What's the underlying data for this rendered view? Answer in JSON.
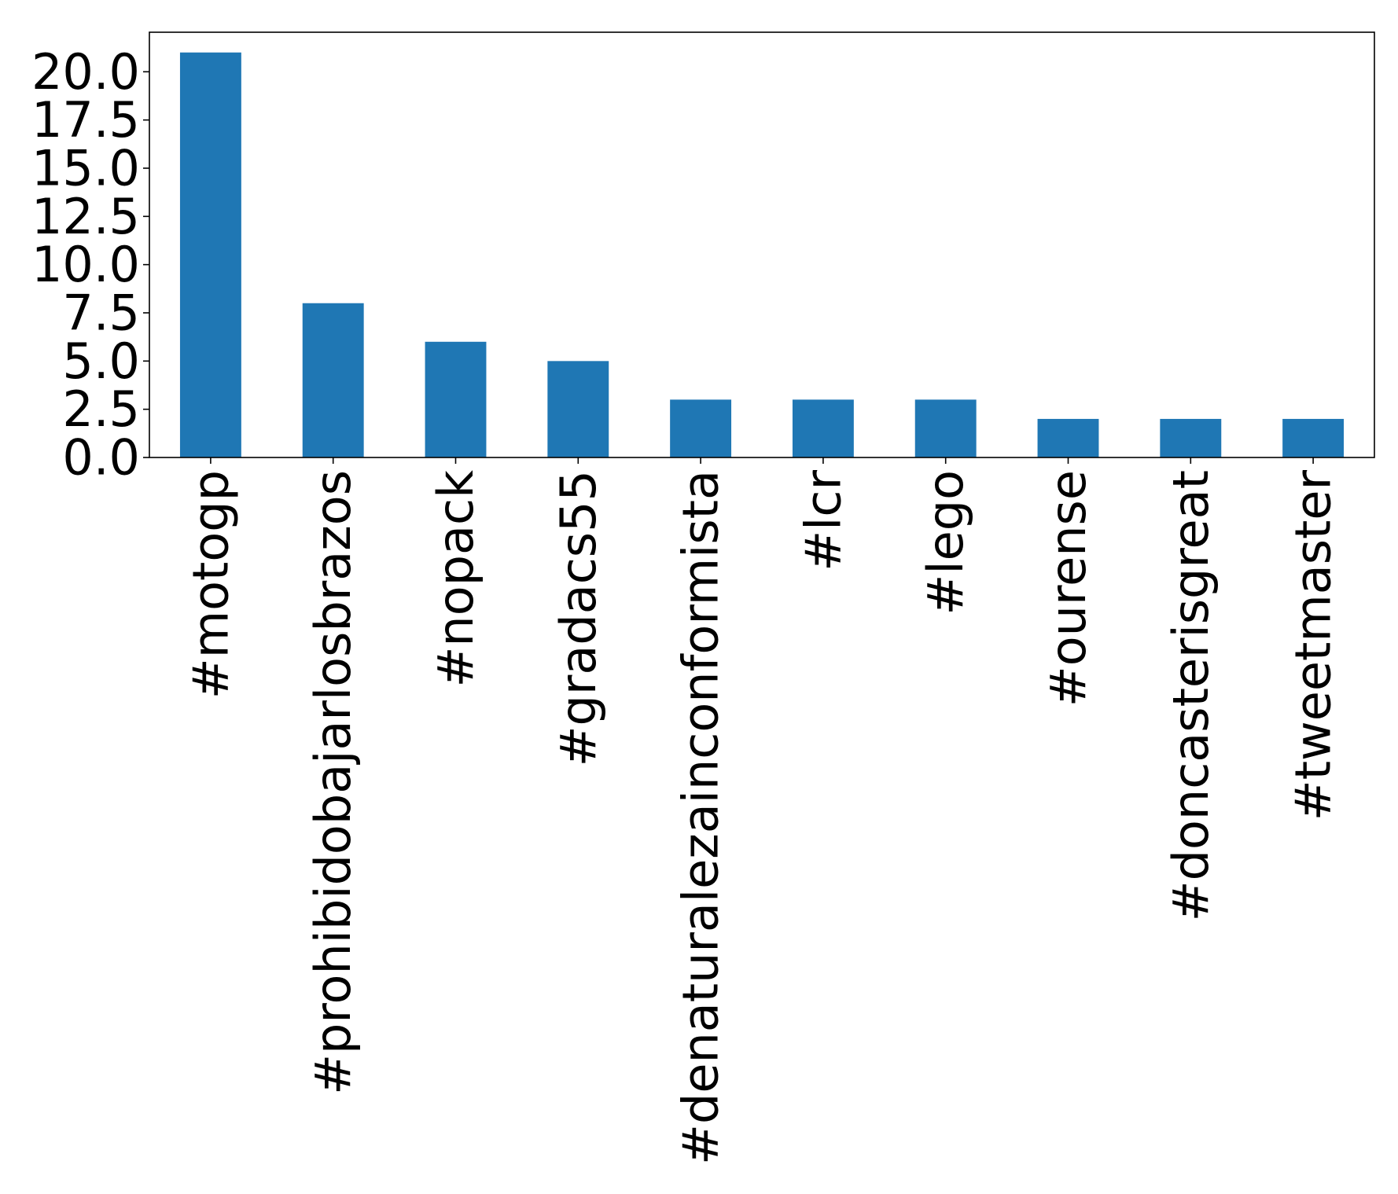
{
  "chart_data": {
    "type": "bar",
    "title": "",
    "xlabel": "",
    "ylabel": "",
    "categories": [
      "#motogp",
      "#prohibidobajarlosbrazos",
      "#nopack",
      "#gradacs55",
      "#denaturalezainconformista",
      "#lcr",
      "#lego",
      "#ourense",
      "#doncasterisgreat",
      "#tweetmaster"
    ],
    "values": [
      21,
      8,
      6,
      5,
      3,
      3,
      3,
      2,
      2,
      2
    ],
    "ylim": [
      0,
      22.05
    ],
    "yticks": [
      0.0,
      2.5,
      5.0,
      7.5,
      10.0,
      12.5,
      15.0,
      17.5,
      20.0
    ],
    "ytick_labels": [
      "0.0",
      "2.5",
      "5.0",
      "7.5",
      "10.0",
      "12.5",
      "15.0",
      "17.5",
      "20.0"
    ],
    "bar_color": "#1f77b4",
    "grid": false,
    "legend": "none"
  }
}
